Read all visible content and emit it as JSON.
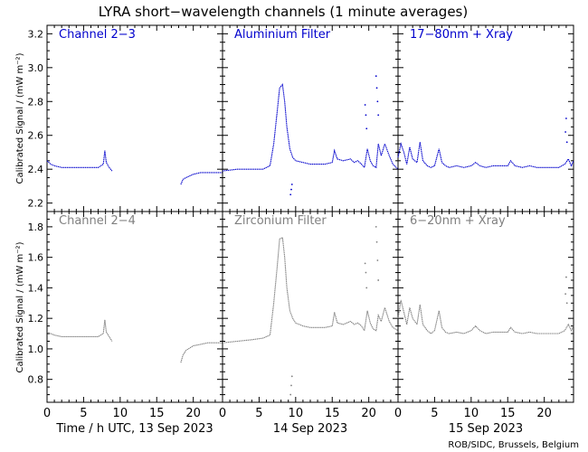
{
  "title": "LYRA short−wavelength channels (1 minute averages)",
  "ylabel": "Calibrated Signal / (mW m⁻²)",
  "credit": "ROB/SIDC, Brussels, Belgium",
  "colors": {
    "top_row": "#0000cc",
    "bottom_row": "#808080",
    "axis": "#000000"
  },
  "days": [
    {
      "label": "Time / h UTC, 13 Sep 2023"
    },
    {
      "label": "14 Sep 2023"
    },
    {
      "label": "15 Sep 2023"
    }
  ],
  "chart_data": {
    "type": "scatter",
    "x_unit": "hour of day (UTC)",
    "xlim": [
      0,
      24
    ],
    "xticks": [
      "0",
      "5",
      "10",
      "15",
      "20"
    ],
    "rows": [
      {
        "ylim": [
          2.15,
          3.25
        ],
        "yticks": [
          "2.2",
          "2.4",
          "2.6",
          "2.8",
          "3.0",
          "3.2"
        ],
        "panels": [
          {
            "name": "Channel 2−3",
            "segments": [
              [
                [
                  0,
                  2.45
                ],
                [
                  0.5,
                  2.43
                ],
                [
                  1,
                  2.42
                ],
                [
                  2,
                  2.41
                ],
                [
                  3,
                  2.41
                ],
                [
                  4,
                  2.41
                ],
                [
                  5,
                  2.41
                ],
                [
                  6,
                  2.41
                ],
                [
                  7,
                  2.41
                ],
                [
                  7.7,
                  2.43
                ],
                [
                  7.9,
                  2.51
                ],
                [
                  8.1,
                  2.44
                ],
                [
                  8.5,
                  2.41
                ],
                [
                  8.9,
                  2.39
                ]
              ],
              [
                [
                  18.3,
                  2.31
                ],
                [
                  18.6,
                  2.34
                ],
                [
                  19,
                  2.35
                ],
                [
                  20,
                  2.37
                ],
                [
                  21,
                  2.38
                ],
                [
                  22,
                  2.38
                ],
                [
                  23,
                  2.38
                ],
                [
                  24,
                  2.38
                ]
              ]
            ]
          },
          {
            "name": "Aluminium Filter",
            "segments": [
              [
                [
                  0,
                  2.39
                ],
                [
                  2,
                  2.4
                ],
                [
                  4,
                  2.4
                ],
                [
                  5.5,
                  2.4
                ],
                [
                  6.5,
                  2.42
                ],
                [
                  7,
                  2.55
                ],
                [
                  7.5,
                  2.75
                ],
                [
                  7.8,
                  2.88
                ],
                [
                  8.2,
                  2.9
                ],
                [
                  8.5,
                  2.8
                ],
                [
                  8.8,
                  2.65
                ],
                [
                  9.2,
                  2.52
                ],
                [
                  9.6,
                  2.47
                ],
                [
                  10,
                  2.45
                ],
                [
                  11,
                  2.44
                ],
                [
                  12,
                  2.43
                ],
                [
                  13,
                  2.43
                ],
                [
                  14,
                  2.43
                ],
                [
                  15,
                  2.44
                ],
                [
                  15.3,
                  2.51
                ],
                [
                  15.7,
                  2.46
                ],
                [
                  16.5,
                  2.45
                ],
                [
                  17.5,
                  2.46
                ],
                [
                  18,
                  2.44
                ],
                [
                  18.5,
                  2.45
                ],
                [
                  19,
                  2.43
                ],
                [
                  19.4,
                  2.41
                ],
                [
                  19.8,
                  2.52
                ],
                [
                  20.2,
                  2.45
                ],
                [
                  20.6,
                  2.42
                ],
                [
                  21,
                  2.41
                ],
                [
                  21.3,
                  2.55
                ],
                [
                  21.7,
                  2.48
                ],
                [
                  22.2,
                  2.55
                ],
                [
                  22.8,
                  2.48
                ],
                [
                  23.3,
                  2.43
                ],
                [
                  24,
                  2.4
                ]
              ]
            ],
            "scatter": [
              [
                9.3,
                2.25
              ],
              [
                9.4,
                2.28
              ],
              [
                9.5,
                2.31
              ],
              [
                19.5,
                2.78
              ],
              [
                19.6,
                2.72
              ],
              [
                19.7,
                2.64
              ],
              [
                21.0,
                2.95
              ],
              [
                21.1,
                2.88
              ],
              [
                21.2,
                2.8
              ],
              [
                21.3,
                2.72
              ]
            ]
          },
          {
            "name": "17−80nm + Xray",
            "segments": [
              [
                [
                  0,
                  2.47
                ],
                [
                  0.4,
                  2.55
                ],
                [
                  0.8,
                  2.5
                ],
                [
                  1.2,
                  2.43
                ],
                [
                  1.6,
                  2.53
                ],
                [
                  2.0,
                  2.46
                ],
                [
                  2.6,
                  2.44
                ],
                [
                  3.0,
                  2.56
                ],
                [
                  3.4,
                  2.45
                ],
                [
                  4,
                  2.42
                ],
                [
                  4.5,
                  2.41
                ],
                [
                  5,
                  2.42
                ],
                [
                  5.6,
                  2.52
                ],
                [
                  6.0,
                  2.44
                ],
                [
                  6.5,
                  2.42
                ],
                [
                  7,
                  2.41
                ],
                [
                  8,
                  2.42
                ],
                [
                  9,
                  2.41
                ],
                [
                  10,
                  2.42
                ],
                [
                  10.6,
                  2.44
                ],
                [
                  11.2,
                  2.42
                ],
                [
                  12,
                  2.41
                ],
                [
                  13,
                  2.42
                ],
                [
                  14,
                  2.42
                ],
                [
                  15,
                  2.42
                ],
                [
                  15.4,
                  2.45
                ],
                [
                  16,
                  2.42
                ],
                [
                  17,
                  2.41
                ],
                [
                  18,
                  2.42
                ],
                [
                  19,
                  2.41
                ],
                [
                  20,
                  2.41
                ],
                [
                  21,
                  2.41
                ],
                [
                  22,
                  2.41
                ],
                [
                  22.8,
                  2.43
                ],
                [
                  23.3,
                  2.46
                ],
                [
                  23.7,
                  2.42
                ],
                [
                  24,
                  2.45
                ]
              ]
            ],
            "scatter": [
              [
                22.9,
                2.62
              ],
              [
                23.0,
                2.7
              ],
              [
                23.1,
                2.56
              ]
            ]
          }
        ]
      },
      {
        "ylim": [
          0.65,
          1.9
        ],
        "yticks": [
          "0.8",
          "1.0",
          "1.2",
          "1.4",
          "1.6",
          "1.8"
        ],
        "panels": [
          {
            "name": "Channel 2−4",
            "segments": [
              [
                [
                  0,
                  1.11
                ],
                [
                  0.5,
                  1.1
                ],
                [
                  1,
                  1.09
                ],
                [
                  2,
                  1.08
                ],
                [
                  3,
                  1.08
                ],
                [
                  4,
                  1.08
                ],
                [
                  5,
                  1.08
                ],
                [
                  6,
                  1.08
                ],
                [
                  7,
                  1.08
                ],
                [
                  7.7,
                  1.1
                ],
                [
                  7.9,
                  1.19
                ],
                [
                  8.1,
                  1.11
                ],
                [
                  8.5,
                  1.08
                ],
                [
                  8.9,
                  1.05
                ]
              ],
              [
                [
                  18.3,
                  0.91
                ],
                [
                  18.6,
                  0.96
                ],
                [
                  19,
                  0.99
                ],
                [
                  20,
                  1.02
                ],
                [
                  21,
                  1.03
                ],
                [
                  22,
                  1.04
                ],
                [
                  23,
                  1.04
                ],
                [
                  24,
                  1.04
                ]
              ]
            ]
          },
          {
            "name": "Zirconium Filter",
            "segments": [
              [
                [
                  0,
                  1.04
                ],
                [
                  2,
                  1.05
                ],
                [
                  4,
                  1.06
                ],
                [
                  5.5,
                  1.07
                ],
                [
                  6.5,
                  1.09
                ],
                [
                  7,
                  1.3
                ],
                [
                  7.5,
                  1.55
                ],
                [
                  7.8,
                  1.72
                ],
                [
                  8.2,
                  1.73
                ],
                [
                  8.5,
                  1.6
                ],
                [
                  8.8,
                  1.4
                ],
                [
                  9.2,
                  1.25
                ],
                [
                  9.6,
                  1.2
                ],
                [
                  10,
                  1.17
                ],
                [
                  11,
                  1.15
                ],
                [
                  12,
                  1.14
                ],
                [
                  13,
                  1.14
                ],
                [
                  14,
                  1.14
                ],
                [
                  15,
                  1.15
                ],
                [
                  15.3,
                  1.24
                ],
                [
                  15.7,
                  1.17
                ],
                [
                  16.5,
                  1.16
                ],
                [
                  17.5,
                  1.18
                ],
                [
                  18,
                  1.16
                ],
                [
                  18.5,
                  1.17
                ],
                [
                  19,
                  1.15
                ],
                [
                  19.4,
                  1.12
                ],
                [
                  19.8,
                  1.25
                ],
                [
                  20.2,
                  1.17
                ],
                [
                  20.6,
                  1.13
                ],
                [
                  21,
                  1.12
                ],
                [
                  21.3,
                  1.22
                ],
                [
                  21.7,
                  1.18
                ],
                [
                  22.2,
                  1.27
                ],
                [
                  22.8,
                  1.18
                ],
                [
                  23.3,
                  1.14
                ],
                [
                  24,
                  1.12
                ]
              ]
            ],
            "scatter": [
              [
                9.3,
                0.7
              ],
              [
                9.4,
                0.76
              ],
              [
                9.5,
                0.82
              ],
              [
                19.5,
                1.56
              ],
              [
                19.6,
                1.5
              ],
              [
                19.7,
                1.4
              ],
              [
                21.0,
                1.8
              ],
              [
                21.1,
                1.7
              ],
              [
                21.2,
                1.58
              ],
              [
                21.3,
                1.45
              ]
            ]
          },
          {
            "name": "6−20nm + Xray",
            "segments": [
              [
                [
                  0,
                  1.2
                ],
                [
                  0.4,
                  1.32
                ],
                [
                  0.8,
                  1.24
                ],
                [
                  1.2,
                  1.16
                ],
                [
                  1.6,
                  1.27
                ],
                [
                  2.0,
                  1.2
                ],
                [
                  2.6,
                  1.16
                ],
                [
                  3.0,
                  1.29
                ],
                [
                  3.4,
                  1.16
                ],
                [
                  4,
                  1.12
                ],
                [
                  4.5,
                  1.1
                ],
                [
                  5,
                  1.12
                ],
                [
                  5.6,
                  1.25
                ],
                [
                  6.0,
                  1.14
                ],
                [
                  6.5,
                  1.11
                ],
                [
                  7,
                  1.1
                ],
                [
                  8,
                  1.11
                ],
                [
                  9,
                  1.1
                ],
                [
                  10,
                  1.12
                ],
                [
                  10.6,
                  1.15
                ],
                [
                  11.2,
                  1.12
                ],
                [
                  12,
                  1.1
                ],
                [
                  13,
                  1.11
                ],
                [
                  14,
                  1.11
                ],
                [
                  15,
                  1.11
                ],
                [
                  15.4,
                  1.14
                ],
                [
                  16,
                  1.11
                ],
                [
                  17,
                  1.1
                ],
                [
                  18,
                  1.11
                ],
                [
                  19,
                  1.1
                ],
                [
                  20,
                  1.1
                ],
                [
                  21,
                  1.1
                ],
                [
                  22,
                  1.1
                ],
                [
                  22.8,
                  1.12
                ],
                [
                  23.3,
                  1.16
                ],
                [
                  23.7,
                  1.12
                ],
                [
                  24,
                  1.15
                ]
              ]
            ],
            "scatter": [
              [
                22.9,
                1.36
              ],
              [
                23.0,
                1.47
              ],
              [
                23.1,
                1.3
              ]
            ]
          }
        ]
      }
    ]
  }
}
